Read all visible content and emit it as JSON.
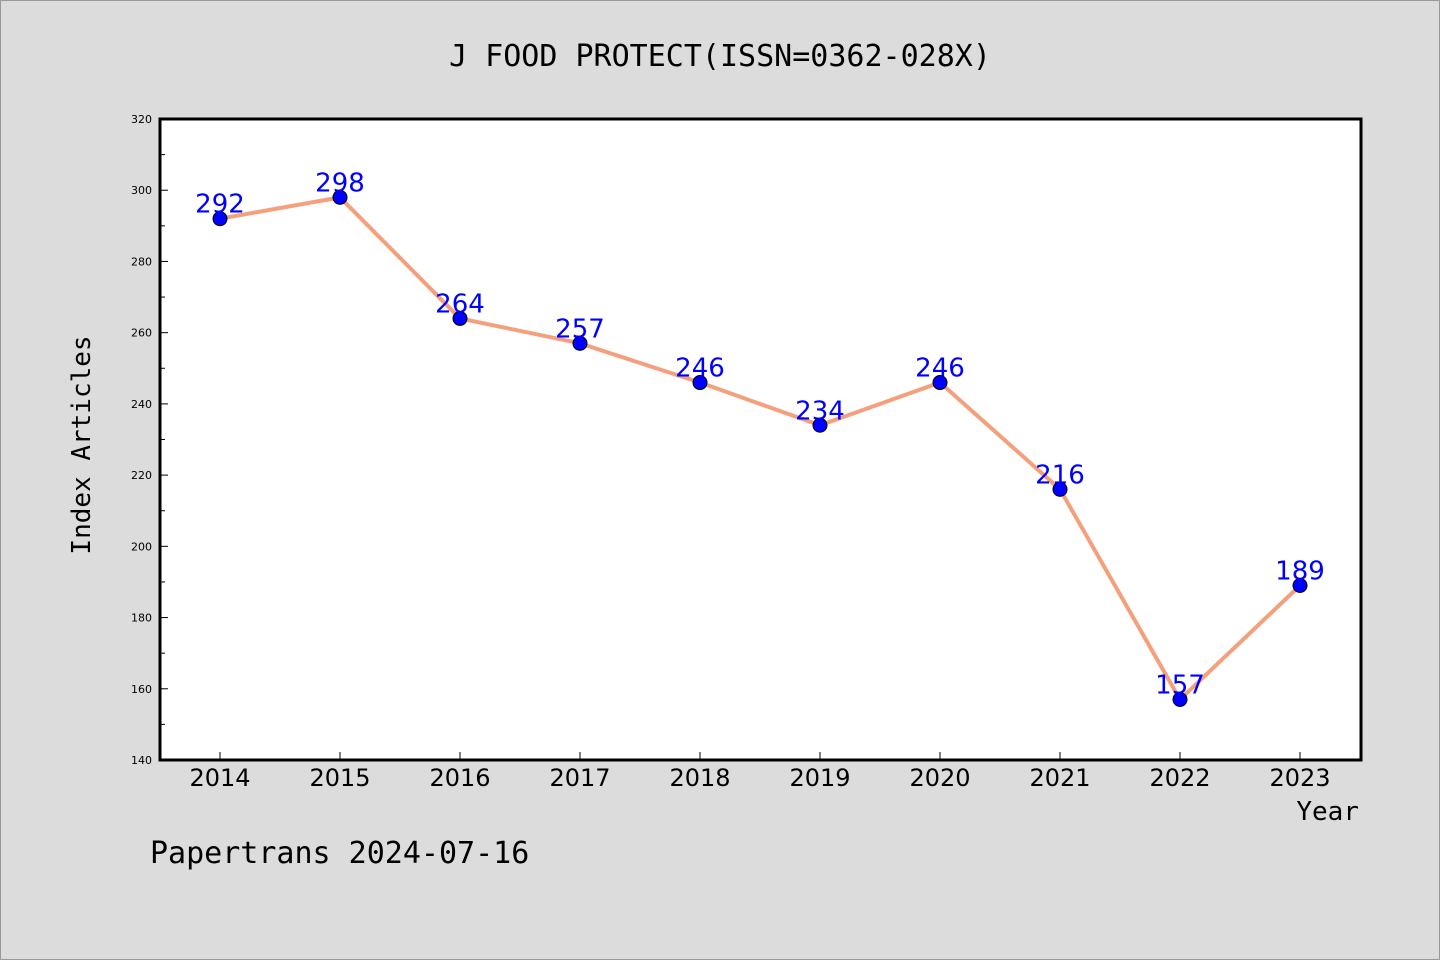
{
  "chart_data": {
    "type": "line",
    "title": "J FOOD PROTECT(ISSN=0362-028X)",
    "xlabel": "Year",
    "ylabel": "Index Articles",
    "categories": [
      "2014",
      "2015",
      "2016",
      "2017",
      "2018",
      "2019",
      "2020",
      "2021",
      "2022",
      "2023"
    ],
    "series": [
      {
        "values": [
          292,
          298,
          264,
          257,
          246,
          234,
          246,
          216,
          157,
          189
        ]
      }
    ],
    "ylim": [
      140,
      320
    ],
    "y_ticks": [
      "140",
      "160",
      "180",
      "200",
      "220",
      "240",
      "260",
      "280",
      "300",
      "320"
    ],
    "line_color": "#f4a07c",
    "marker_color": "#0000ff",
    "label_color": "#0000ff",
    "grid": false,
    "legend": "none"
  },
  "footer": {
    "text": "Papertrans 2024-07-16"
  }
}
